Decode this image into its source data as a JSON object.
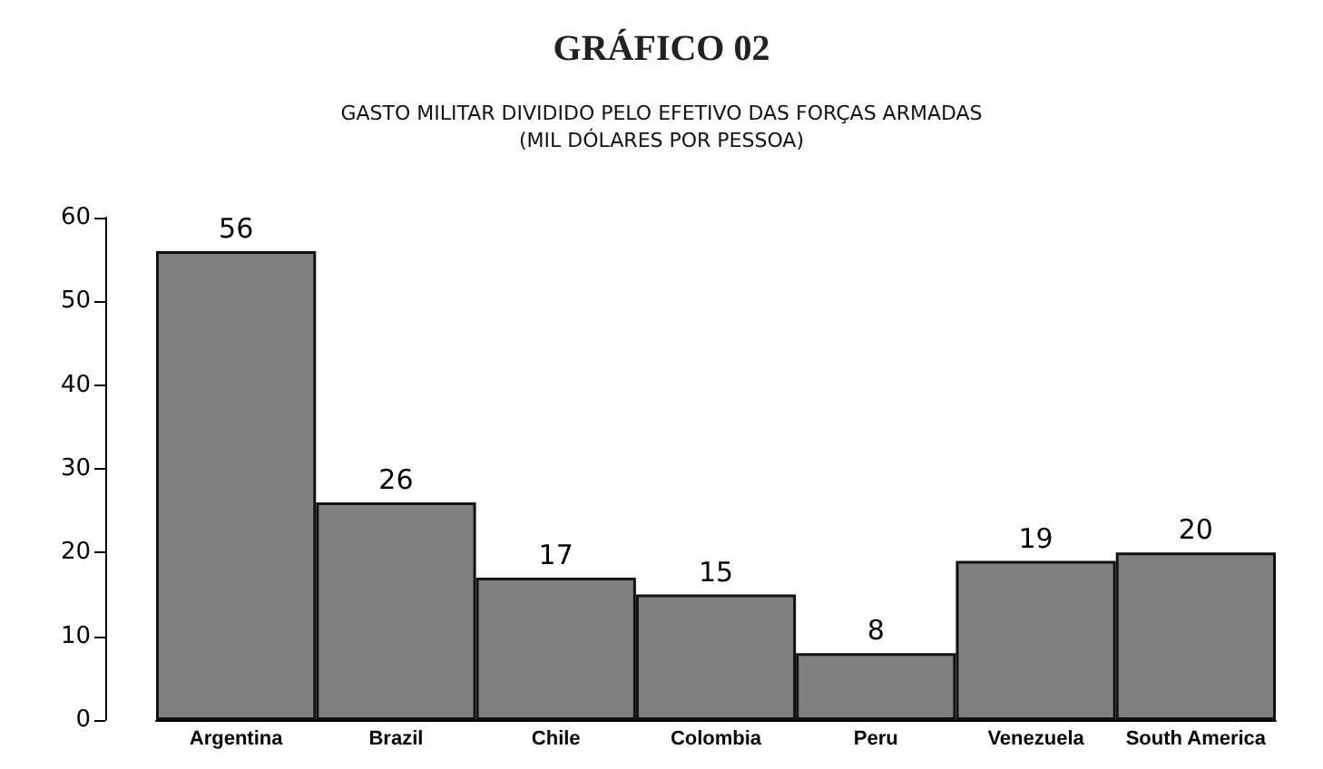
{
  "chart_data": {
    "type": "bar",
    "title": "GRÁFICO 02",
    "subtitle": "GASTO MILITAR DIVIDIDO PELO EFETIVO DAS FORÇAS ARMADAS\n(MIL DÓLARES POR PESSOA)",
    "categories": [
      "Argentina",
      "Brazil",
      "Chile",
      "Colombia",
      "Peru",
      "Venezuela",
      "South America"
    ],
    "values": [
      56,
      26,
      17,
      15,
      8,
      19,
      20
    ],
    "color": "#808080",
    "ylim": [
      0,
      60
    ],
    "yticks": [
      0,
      10,
      20,
      30,
      40,
      50,
      60
    ],
    "grid": false,
    "data_labels": true
  }
}
